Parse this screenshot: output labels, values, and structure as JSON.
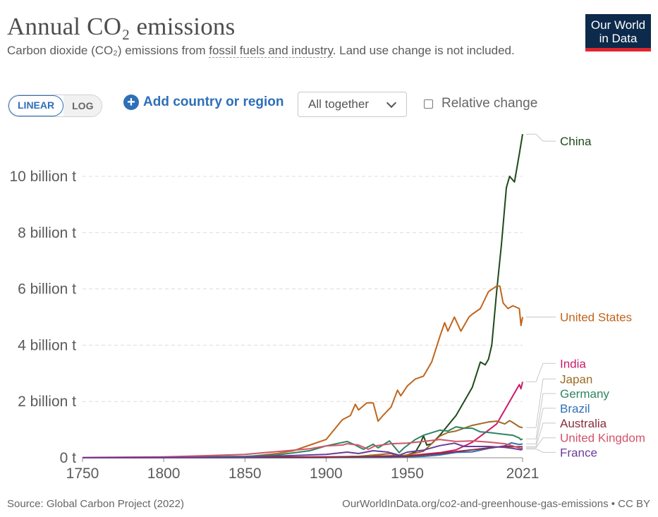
{
  "header": {
    "title": "Annual CO₂ emissions",
    "subtitle_pre": "Carbon dioxide (CO₂) emissions from ",
    "subtitle_link": "fossil fuels and industry",
    "subtitle_post": ". Land use change is not included."
  },
  "logo": {
    "line1": "Our World",
    "line2": "in Data"
  },
  "controls": {
    "linear": "LINEAR",
    "log": "LOG",
    "add_country": "Add country or region",
    "facet_select": "All together",
    "relative_change": "Relative change"
  },
  "footer": {
    "source": "Source: Global Carbon Project (2022)",
    "url": "OurWorldInData.org/co2-and-greenhouse-gas-emissions • CC BY"
  },
  "chart_data": {
    "type": "line",
    "x_tick_labels": [
      "1750",
      "1800",
      "1850",
      "1900",
      "1950",
      "2021"
    ],
    "y_tick_labels": [
      "0 t",
      "2 billion t",
      "4 billion t",
      "6 billion t",
      "8 billion t",
      "10 billion t"
    ],
    "y_tick_values": [
      0,
      2,
      4,
      6,
      8,
      10
    ],
    "xlim": [
      1750,
      2021
    ],
    "ylim": [
      0,
      11.5
    ],
    "grid": true,
    "legend_position": "right end-labels",
    "series": [
      {
        "name": "China",
        "color": "#1f4a1a",
        "points": [
          [
            1750,
            0
          ],
          [
            1900,
            0.01
          ],
          [
            1949,
            0.08
          ],
          [
            1955,
            0.2
          ],
          [
            1958,
            0.5
          ],
          [
            1960,
            0.78
          ],
          [
            1962,
            0.45
          ],
          [
            1965,
            0.5
          ],
          [
            1970,
            0.8
          ],
          [
            1975,
            1.15
          ],
          [
            1980,
            1.5
          ],
          [
            1985,
            2.0
          ],
          [
            1990,
            2.5
          ],
          [
            1995,
            3.4
          ],
          [
            1998,
            3.3
          ],
          [
            2000,
            3.5
          ],
          [
            2002,
            4.0
          ],
          [
            2005,
            5.9
          ],
          [
            2008,
            7.6
          ],
          [
            2011,
            9.6
          ],
          [
            2013,
            10.0
          ],
          [
            2016,
            9.8
          ],
          [
            2019,
            10.8
          ],
          [
            2021,
            11.5
          ]
        ]
      },
      {
        "name": "United States",
        "color": "#c0651b",
        "points": [
          [
            1750,
            0
          ],
          [
            1800,
            0.0
          ],
          [
            1850,
            0.03
          ],
          [
            1870,
            0.15
          ],
          [
            1880,
            0.25
          ],
          [
            1890,
            0.45
          ],
          [
            1900,
            0.65
          ],
          [
            1905,
            1.0
          ],
          [
            1910,
            1.35
          ],
          [
            1915,
            1.5
          ],
          [
            1918,
            1.9
          ],
          [
            1920,
            1.7
          ],
          [
            1925,
            1.95
          ],
          [
            1929,
            1.95
          ],
          [
            1932,
            1.3
          ],
          [
            1935,
            1.5
          ],
          [
            1940,
            1.8
          ],
          [
            1944,
            2.4
          ],
          [
            1946,
            2.2
          ],
          [
            1950,
            2.55
          ],
          [
            1955,
            2.8
          ],
          [
            1960,
            2.9
          ],
          [
            1965,
            3.4
          ],
          [
            1970,
            4.3
          ],
          [
            1973,
            4.8
          ],
          [
            1975,
            4.5
          ],
          [
            1979,
            5.0
          ],
          [
            1983,
            4.5
          ],
          [
            1988,
            5.0
          ],
          [
            1990,
            5.1
          ],
          [
            1995,
            5.3
          ],
          [
            2000,
            5.9
          ],
          [
            2005,
            6.1
          ],
          [
            2007,
            6.1
          ],
          [
            2009,
            5.5
          ],
          [
            2012,
            5.3
          ],
          [
            2015,
            5.4
          ],
          [
            2019,
            5.3
          ],
          [
            2020,
            4.7
          ],
          [
            2021,
            5.0
          ]
        ]
      },
      {
        "name": "India",
        "color": "#cc1a6a",
        "points": [
          [
            1750,
            0
          ],
          [
            1900,
            0.03
          ],
          [
            1950,
            0.07
          ],
          [
            1970,
            0.18
          ],
          [
            1980,
            0.28
          ],
          [
            1990,
            0.55
          ],
          [
            2000,
            0.98
          ],
          [
            2005,
            1.2
          ],
          [
            2010,
            1.7
          ],
          [
            2015,
            2.2
          ],
          [
            2019,
            2.6
          ],
          [
            2020,
            2.45
          ],
          [
            2021,
            2.7
          ]
        ]
      },
      {
        "name": "Japan",
        "color": "#9c6b25",
        "points": [
          [
            1750,
            0
          ],
          [
            1900,
            0.02
          ],
          [
            1920,
            0.05
          ],
          [
            1940,
            0.15
          ],
          [
            1945,
            0.05
          ],
          [
            1950,
            0.1
          ],
          [
            1960,
            0.23
          ],
          [
            1970,
            0.77
          ],
          [
            1975,
            0.9
          ],
          [
            1980,
            0.95
          ],
          [
            1990,
            1.15
          ],
          [
            2000,
            1.27
          ],
          [
            2005,
            1.3
          ],
          [
            2010,
            1.2
          ],
          [
            2013,
            1.32
          ],
          [
            2015,
            1.25
          ],
          [
            2019,
            1.1
          ],
          [
            2021,
            1.07
          ]
        ]
      },
      {
        "name": "Germany",
        "color": "#2e8563",
        "points": [
          [
            1750,
            0
          ],
          [
            1850,
            0.05
          ],
          [
            1870,
            0.1
          ],
          [
            1890,
            0.25
          ],
          [
            1900,
            0.42
          ],
          [
            1913,
            0.58
          ],
          [
            1918,
            0.45
          ],
          [
            1923,
            0.3
          ],
          [
            1929,
            0.48
          ],
          [
            1932,
            0.35
          ],
          [
            1939,
            0.6
          ],
          [
            1945,
            0.18
          ],
          [
            1948,
            0.35
          ],
          [
            1955,
            0.65
          ],
          [
            1960,
            0.8
          ],
          [
            1970,
            0.98
          ],
          [
            1975,
            0.95
          ],
          [
            1980,
            1.1
          ],
          [
            1985,
            1.05
          ],
          [
            1990,
            1.05
          ],
          [
            1995,
            0.92
          ],
          [
            2000,
            0.9
          ],
          [
            2010,
            0.83
          ],
          [
            2015,
            0.8
          ],
          [
            2019,
            0.7
          ],
          [
            2020,
            0.64
          ],
          [
            2021,
            0.67
          ]
        ]
      },
      {
        "name": "Brazil",
        "color": "#2f6fb6",
        "points": [
          [
            1750,
            0
          ],
          [
            1940,
            0.01
          ],
          [
            1960,
            0.05
          ],
          [
            1970,
            0.1
          ],
          [
            1980,
            0.19
          ],
          [
            1990,
            0.21
          ],
          [
            2000,
            0.33
          ],
          [
            2010,
            0.42
          ],
          [
            2014,
            0.53
          ],
          [
            2019,
            0.47
          ],
          [
            2021,
            0.49
          ]
        ]
      },
      {
        "name": "Australia",
        "color": "#8a2d3f",
        "points": [
          [
            1750,
            0
          ],
          [
            1900,
            0.02
          ],
          [
            1950,
            0.05
          ],
          [
            1970,
            0.15
          ],
          [
            1980,
            0.22
          ],
          [
            1990,
            0.28
          ],
          [
            2000,
            0.35
          ],
          [
            2010,
            0.41
          ],
          [
            2015,
            0.39
          ],
          [
            2021,
            0.39
          ]
        ]
      },
      {
        "name": "United Kingdom",
        "color": "#d2546a",
        "points": [
          [
            1750,
            0.01
          ],
          [
            1800,
            0.03
          ],
          [
            1830,
            0.08
          ],
          [
            1850,
            0.12
          ],
          [
            1870,
            0.22
          ],
          [
            1890,
            0.32
          ],
          [
            1900,
            0.42
          ],
          [
            1910,
            0.45
          ],
          [
            1913,
            0.5
          ],
          [
            1920,
            0.45
          ],
          [
            1926,
            0.3
          ],
          [
            1930,
            0.42
          ],
          [
            1940,
            0.5
          ],
          [
            1950,
            0.52
          ],
          [
            1960,
            0.58
          ],
          [
            1970,
            0.65
          ],
          [
            1980,
            0.58
          ],
          [
            1990,
            0.6
          ],
          [
            2000,
            0.56
          ],
          [
            2010,
            0.5
          ],
          [
            2015,
            0.42
          ],
          [
            2020,
            0.32
          ],
          [
            2021,
            0.35
          ]
        ]
      },
      {
        "name": "France",
        "color": "#6a3d9a",
        "points": [
          [
            1750,
            0
          ],
          [
            1850,
            0.02
          ],
          [
            1900,
            0.12
          ],
          [
            1913,
            0.2
          ],
          [
            1920,
            0.15
          ],
          [
            1929,
            0.25
          ],
          [
            1938,
            0.2
          ],
          [
            1945,
            0.09
          ],
          [
            1950,
            0.2
          ],
          [
            1960,
            0.27
          ],
          [
            1970,
            0.43
          ],
          [
            1979,
            0.52
          ],
          [
            1985,
            0.4
          ],
          [
            1990,
            0.4
          ],
          [
            2000,
            0.4
          ],
          [
            2010,
            0.37
          ],
          [
            2015,
            0.33
          ],
          [
            2020,
            0.28
          ],
          [
            2021,
            0.31
          ]
        ]
      }
    ],
    "end_labels": [
      {
        "name": "China",
        "y": 11.25
      },
      {
        "name": "United States",
        "y": 5.0
      },
      {
        "name": "India",
        "y": 3.35
      },
      {
        "name": "Japan",
        "y": 2.8
      },
      {
        "name": "Germany",
        "y": 2.28
      },
      {
        "name": "Brazil",
        "y": 1.76
      },
      {
        "name": "Australia",
        "y": 1.23
      },
      {
        "name": "United Kingdom",
        "y": 0.71
      },
      {
        "name": "France",
        "y": 0.19
      }
    ]
  }
}
